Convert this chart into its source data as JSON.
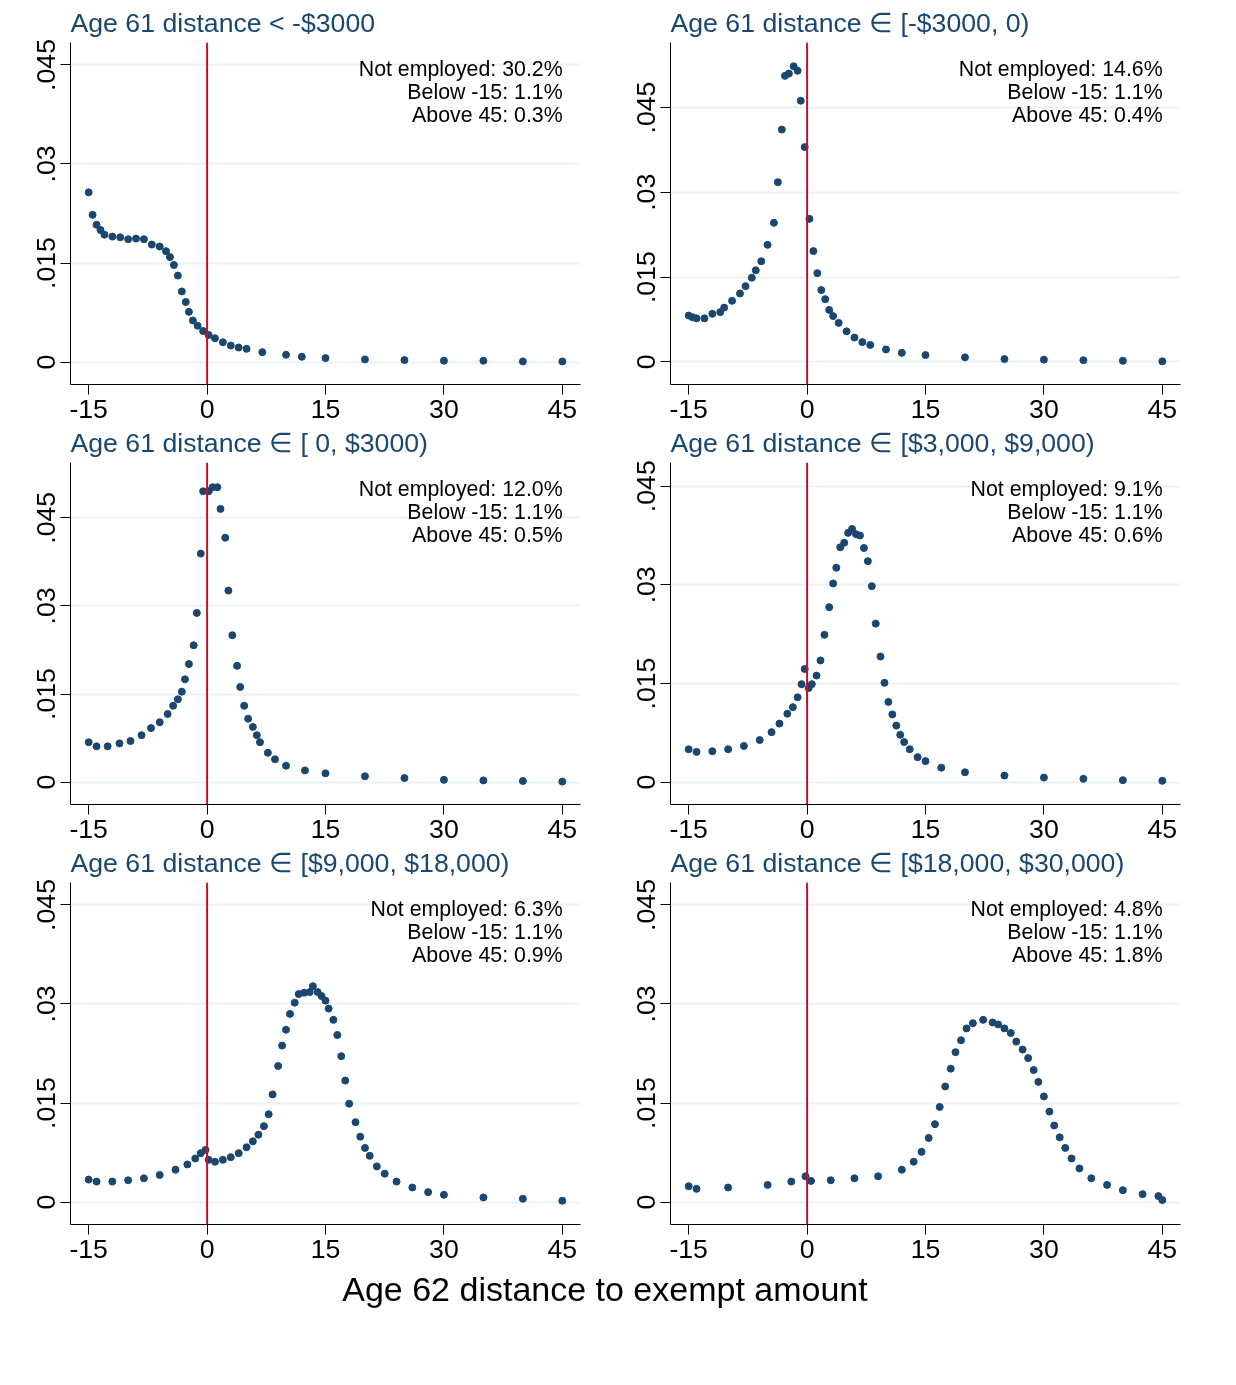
{
  "chart_data": [
    {
      "type": "scatter",
      "title": "Age 61 distance < -$3000",
      "marker": "circle",
      "grid": "y",
      "xlim": [
        -17.3,
        47.3
      ],
      "ylim": [
        -0.0034,
        0.0484
      ],
      "xticks": [
        -15,
        0,
        15,
        30,
        45
      ],
      "yticks": [
        0,
        {
          "value": 0.015,
          "label": ".015"
        },
        {
          "value": 0.03,
          "label": ".03"
        },
        {
          "value": 0.045,
          "label": ".045"
        }
      ],
      "annotations": [
        "Not employed: 30.2%",
        "Below -15: 1.1%",
        "Above 45: 0.3%"
      ],
      "ref_lines": [
        {
          "axis": "x",
          "value": 0,
          "color": "#c8102e"
        }
      ],
      "series": [
        {
          "color": "#1a476f",
          "x": [
            -15,
            -14.5,
            -14,
            -13.5,
            -13,
            -12,
            -11,
            -10,
            -9,
            -8,
            -7,
            -6,
            -5.2,
            -4.7,
            -4.2,
            -3.7,
            -3.2,
            -2.7,
            -2.3,
            -1.8,
            -1.2,
            -0.5,
            0.2,
            1,
            2,
            3,
            4,
            5,
            7,
            10,
            12,
            15,
            20,
            25,
            30,
            35,
            40,
            45
          ],
          "values": [
            0.0257,
            0.0223,
            0.0208,
            0.02,
            0.0193,
            0.019,
            0.0189,
            0.0186,
            0.0187,
            0.0186,
            0.0178,
            0.0175,
            0.0168,
            0.0159,
            0.0147,
            0.0131,
            0.0107,
            0.0091,
            0.0076,
            0.0063,
            0.0055,
            0.0047,
            0.0041,
            0.0036,
            0.003,
            0.0025,
            0.0022,
            0.002,
            0.0015,
            0.0011,
            0.0008,
            0.0006,
            0.0004,
            0.0003,
            0.0002,
            0.0002,
            0.0001,
            0.0001
          ]
        }
      ]
    },
    {
      "type": "scatter",
      "title": "Age 61 distance ∈ [-$3000, 0)",
      "marker": "circle",
      "grid": "y",
      "xlim": [
        -17.3,
        47.3
      ],
      "ylim": [
        -0.004,
        0.0565
      ],
      "xticks": [
        -15,
        0,
        15,
        30,
        45
      ],
      "yticks": [
        0,
        {
          "value": 0.015,
          "label": ".015"
        },
        {
          "value": 0.03,
          "label": ".03"
        },
        {
          "value": 0.045,
          "label": ".045"
        }
      ],
      "annotations": [
        "Not employed: 14.6%",
        "Below -15: 1.1%",
        "Above 45: 0.4%"
      ],
      "ref_lines": [
        {
          "axis": "x",
          "value": 0,
          "color": "#c8102e"
        }
      ],
      "series": [
        {
          "color": "#1a476f",
          "x": [
            -15,
            -14.5,
            -14,
            -13,
            -12,
            -11,
            -10.5,
            -9.5,
            -8.5,
            -7.8,
            -7,
            -6.5,
            -5.8,
            -5,
            -4.2,
            -3.7,
            -3.2,
            -2.8,
            -2.3,
            -1.7,
            -1.2,
            -0.8,
            -0.3,
            0.3,
            0.8,
            1.3,
            1.8,
            2.3,
            2.8,
            3.3,
            4,
            5,
            6,
            7,
            8,
            10,
            12,
            15,
            20,
            25,
            30,
            35,
            40,
            45
          ],
          "values": [
            0.0082,
            0.0079,
            0.0077,
            0.0077,
            0.0085,
            0.0088,
            0.0096,
            0.0108,
            0.0121,
            0.0134,
            0.0149,
            0.0162,
            0.0178,
            0.0207,
            0.0246,
            0.0318,
            0.0411,
            0.0506,
            0.051,
            0.0523,
            0.0515,
            0.0462,
            0.038,
            0.0253,
            0.0196,
            0.0157,
            0.0127,
            0.0111,
            0.0092,
            0.0081,
            0.0069,
            0.0054,
            0.0043,
            0.0035,
            0.003,
            0.0022,
            0.0016,
            0.0012,
            0.0008,
            0.0005,
            0.0004,
            0.0003,
            0.0002,
            0.0001
          ]
        }
      ]
    },
    {
      "type": "scatter",
      "title": "Age 61 distance ∈ [ 0, $3000)",
      "marker": "circle",
      "grid": "y",
      "xlim": [
        -17.3,
        47.3
      ],
      "ylim": [
        -0.0038,
        0.0544
      ],
      "xticks": [
        -15,
        0,
        15,
        30,
        45
      ],
      "yticks": [
        0,
        {
          "value": 0.015,
          "label": ".015"
        },
        {
          "value": 0.03,
          "label": ".03"
        },
        {
          "value": 0.045,
          "label": ".045"
        }
      ],
      "annotations": [
        "Not employed: 12.0%",
        "Below -15: 1.1%",
        "Above 45: 0.5%"
      ],
      "ref_lines": [
        {
          "axis": "x",
          "value": 0,
          "color": "#c8102e"
        }
      ],
      "series": [
        {
          "color": "#1a476f",
          "x": [
            -15,
            -14,
            -12.6,
            -11.1,
            -9.7,
            -8.3,
            -7.1,
            -6,
            -5,
            -4.3,
            -3.7,
            -3.2,
            -2.8,
            -2.3,
            -1.7,
            -1.3,
            -0.8,
            -0.5,
            0.2,
            0.7,
            1.3,
            1.7,
            2.3,
            2.7,
            3.2,
            3.8,
            4.2,
            4.7,
            5.2,
            5.8,
            6.3,
            6.7,
            7.7,
            8.6,
            10,
            12.4,
            15,
            20,
            25,
            30,
            35,
            40,
            45
          ],
          "values": [
            0.0068,
            0.0061,
            0.0061,
            0.0066,
            0.007,
            0.008,
            0.0092,
            0.0102,
            0.0116,
            0.013,
            0.0141,
            0.0154,
            0.0175,
            0.0201,
            0.0233,
            0.0288,
            0.0389,
            0.0495,
            0.0495,
            0.0502,
            0.0502,
            0.0465,
            0.0416,
            0.0326,
            0.025,
            0.0198,
            0.0162,
            0.013,
            0.0108,
            0.0094,
            0.008,
            0.0068,
            0.005,
            0.0039,
            0.0028,
            0.002,
            0.0015,
            0.001,
            0.0007,
            0.0004,
            0.0003,
            0.0002,
            0.0001
          ]
        }
      ]
    },
    {
      "type": "scatter",
      "title": "Age 61 distance ∈ [$3,000, $9,000)",
      "marker": "circle",
      "grid": "y",
      "xlim": [
        -17.3,
        47.3
      ],
      "ylim": [
        -0.0034,
        0.0486
      ],
      "xticks": [
        -15,
        0,
        15,
        30,
        45
      ],
      "yticks": [
        0,
        {
          "value": 0.015,
          "label": ".015"
        },
        {
          "value": 0.03,
          "label": ".03"
        },
        {
          "value": 0.045,
          "label": ".045"
        }
      ],
      "annotations": [
        "Not employed: 9.1%",
        "Below -15: 1.1%",
        "Above 45: 0.6%"
      ],
      "ref_lines": [
        {
          "axis": "x",
          "value": 0,
          "color": "#c8102e"
        }
      ],
      "series": [
        {
          "color": "#1a476f",
          "x": [
            -15,
            -14,
            -12,
            -10,
            -8,
            -6,
            -4.5,
            -3.5,
            -2.5,
            -1.8,
            -1.2,
            -0.7,
            -0.3,
            0.2,
            0.6,
            1.2,
            1.7,
            2.2,
            2.8,
            3.3,
            3.7,
            4.2,
            4.7,
            5.2,
            5.7,
            6.2,
            6.7,
            7.2,
            7.7,
            8.2,
            8.7,
            9.3,
            9.8,
            10.3,
            10.8,
            11.3,
            11.8,
            12.3,
            13,
            14,
            15,
            17,
            20,
            25,
            30,
            35,
            40,
            45
          ],
          "values": [
            0.005,
            0.0046,
            0.0047,
            0.005,
            0.0055,
            0.0064,
            0.0076,
            0.0089,
            0.0104,
            0.0114,
            0.0129,
            0.0149,
            0.0172,
            0.0143,
            0.0149,
            0.0162,
            0.0185,
            0.0224,
            0.0266,
            0.0302,
            0.0326,
            0.0357,
            0.0364,
            0.0379,
            0.0385,
            0.0377,
            0.0375,
            0.0356,
            0.0336,
            0.0298,
            0.0241,
            0.0191,
            0.0151,
            0.0122,
            0.0103,
            0.0086,
            0.0072,
            0.0061,
            0.005,
            0.0038,
            0.0032,
            0.0022,
            0.0015,
            0.001,
            0.0007,
            0.0005,
            0.0003,
            0.0002
          ]
        }
      ]
    },
    {
      "type": "scatter",
      "title": "Age 61 distance ∈ [$9,000, $18,000)",
      "marker": "circle",
      "grid": "y",
      "xlim": [
        -17.3,
        47.3
      ],
      "ylim": [
        -0.0034,
        0.0484
      ],
      "xticks": [
        -15,
        0,
        15,
        30,
        45
      ],
      "yticks": [
        0,
        {
          "value": 0.015,
          "label": ".015"
        },
        {
          "value": 0.03,
          "label": ".03"
        },
        {
          "value": 0.045,
          "label": ".045"
        }
      ],
      "annotations": [
        "Not employed: 6.3%",
        "Below -15: 1.1%",
        "Above 45: 0.9%"
      ],
      "ref_lines": [
        {
          "axis": "x",
          "value": 0,
          "color": "#c8102e"
        }
      ],
      "series": [
        {
          "color": "#1a476f",
          "x": [
            -15,
            -14,
            -12,
            -10,
            -8,
            -6,
            -4,
            -2.5,
            -1.5,
            -0.8,
            -0.2,
            0.2,
            1,
            2,
            3,
            4,
            5,
            5.8,
            6.5,
            7.2,
            7.8,
            8.3,
            9,
            9.5,
            10,
            10.5,
            11.1,
            11.6,
            12.3,
            13,
            13.4,
            14,
            14.5,
            15,
            15.4,
            16,
            16.5,
            17,
            17.5,
            18,
            18.8,
            19.4,
            20,
            20.6,
            21.5,
            22.5,
            24,
            26,
            28,
            30,
            35,
            40,
            45
          ],
          "values": [
            0.0034,
            0.0031,
            0.0031,
            0.0033,
            0.0036,
            0.0041,
            0.0049,
            0.0057,
            0.0066,
            0.0074,
            0.0079,
            0.0064,
            0.0061,
            0.0064,
            0.0068,
            0.0074,
            0.0083,
            0.0092,
            0.0102,
            0.0115,
            0.0133,
            0.0163,
            0.0206,
            0.0237,
            0.0261,
            0.0285,
            0.0302,
            0.0315,
            0.0317,
            0.0318,
            0.0327,
            0.0318,
            0.0312,
            0.0305,
            0.0293,
            0.0276,
            0.0253,
            0.0221,
            0.0184,
            0.0149,
            0.0121,
            0.0099,
            0.0082,
            0.007,
            0.0054,
            0.0043,
            0.0031,
            0.0022,
            0.0015,
            0.0011,
            0.0007,
            0.0005,
            0.0002
          ]
        }
      ]
    },
    {
      "type": "scatter",
      "title": "Age 61 distance ∈ [$18,000, $30,000)",
      "xlabel": "Age 62 distance to exempt amount",
      "marker": "circle",
      "grid": "y",
      "xlim": [
        -17.3,
        47.3
      ],
      "ylim": [
        -0.0034,
        0.0484
      ],
      "xticks": [
        -15,
        0,
        15,
        30,
        45
      ],
      "yticks": [
        0,
        {
          "value": 0.015,
          "label": ".015"
        },
        {
          "value": 0.03,
          "label": ".03"
        },
        {
          "value": 0.045,
          "label": ".045"
        }
      ],
      "annotations": [
        "Not employed: 4.8%",
        "Below -15: 1.1%",
        "Above 45: 1.8%"
      ],
      "ref_lines": [
        {
          "axis": "x",
          "value": 0,
          "color": "#c8102e"
        }
      ],
      "series": [
        {
          "color": "#1a476f",
          "x": [
            -15,
            -14,
            -10,
            -5,
            -2,
            -0.2,
            0.5,
            3,
            6,
            9,
            12,
            13.5,
            14.5,
            15.4,
            16.2,
            16.8,
            17.5,
            18.2,
            18.8,
            19.5,
            20.2,
            21,
            22.3,
            23.5,
            24.2,
            25,
            25.8,
            26.5,
            27.3,
            28,
            28.7,
            29.3,
            30,
            30.7,
            31.3,
            32,
            32.7,
            33.5,
            34.5,
            36,
            38,
            40,
            42.5,
            44.5,
            45
          ],
          "values": [
            0.0024,
            0.002,
            0.0022,
            0.0026,
            0.0031,
            0.0039,
            0.0032,
            0.0033,
            0.0036,
            0.0039,
            0.0049,
            0.0061,
            0.0076,
            0.0097,
            0.0118,
            0.0144,
            0.0175,
            0.0202,
            0.0227,
            0.0245,
            0.0263,
            0.0271,
            0.0276,
            0.0272,
            0.0269,
            0.0263,
            0.0256,
            0.0243,
            0.0231,
            0.0218,
            0.02,
            0.0182,
            0.016,
            0.0137,
            0.0116,
            0.0098,
            0.0082,
            0.0066,
            0.0051,
            0.0036,
            0.0026,
            0.0018,
            0.0012,
            0.0009,
            0.0003
          ]
        }
      ]
    }
  ]
}
